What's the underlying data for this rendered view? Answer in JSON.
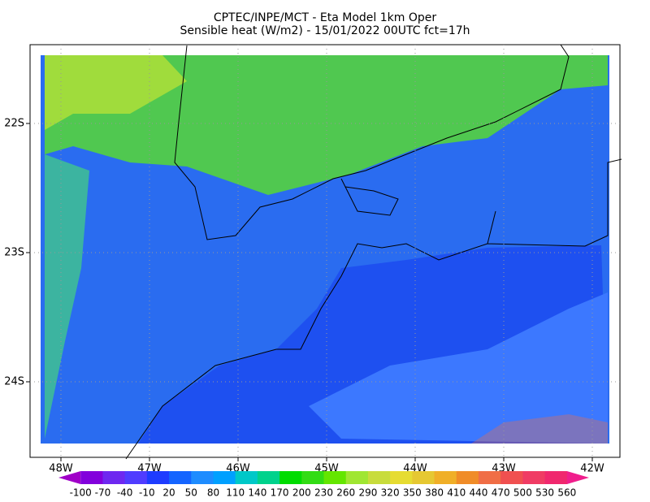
{
  "map": {
    "title": [
      "CPTEC/INPE/MCT -  Eta Model 1km Oper",
      "Sensible heat (W/m2) - 15/01/2022 00UTC fct=17h"
    ],
    "lon_ticks": [
      "48W",
      "47W",
      "46W",
      "45W",
      "44W",
      "43W",
      "42W"
    ],
    "lat_ticks": [
      "22S",
      "23S",
      "24S"
    ],
    "colorbar": {
      "labels": [
        -100,
        -70,
        -40,
        -10,
        20,
        50,
        80,
        110,
        140,
        170,
        200,
        230,
        260,
        290,
        320,
        350,
        380,
        410,
        440,
        470,
        500,
        530,
        560
      ],
      "colors": [
        "#a000c8",
        "#8200dc",
        "#6e28f0",
        "#503cff",
        "#1e3cff",
        "#1464ff",
        "#1e8cff",
        "#00a0ff",
        "#00c8c8",
        "#00d28c",
        "#00dc00",
        "#32dc14",
        "#64e600",
        "#a0e632",
        "#c8dc3c",
        "#e6dc32",
        "#e6c832",
        "#f0af28",
        "#f08c28",
        "#f06e46",
        "#f05050",
        "#f03c64",
        "#f0286e",
        "#f01e8c"
      ]
    }
  }
}
